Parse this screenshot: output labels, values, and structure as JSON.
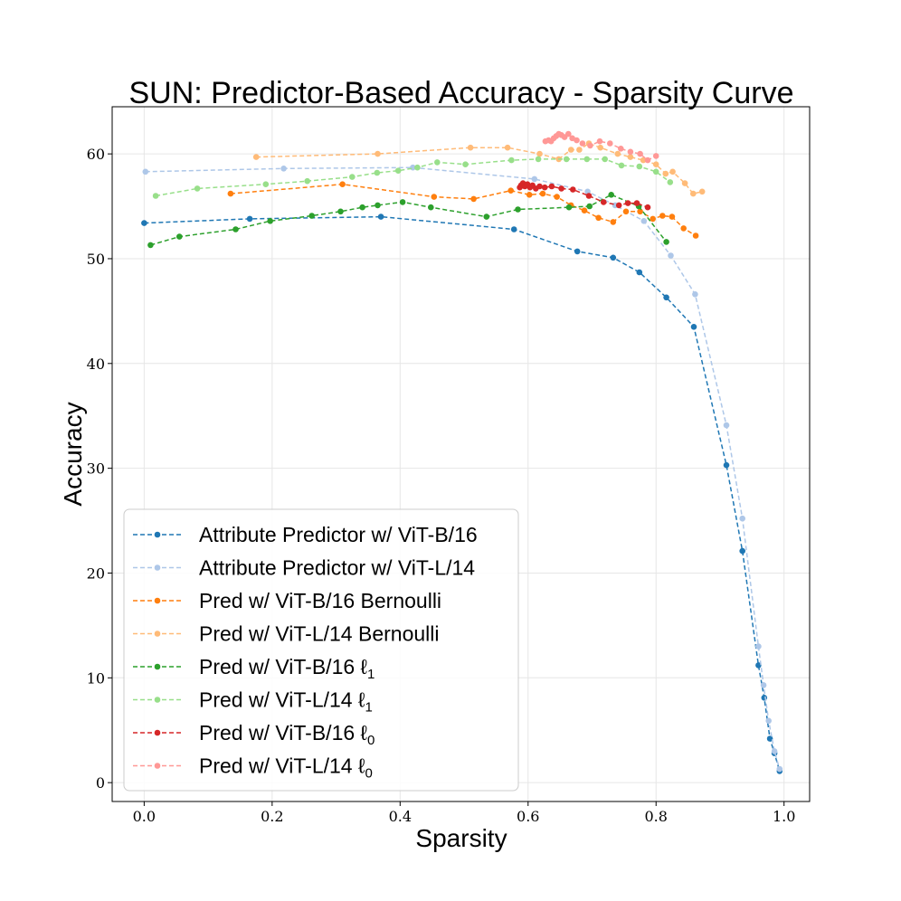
{
  "chart_data": {
    "type": "line",
    "title": "SUN: Predictor-Based Accuracy - Sparsity Curve",
    "xlabel": "Sparsity",
    "ylabel": "Accuracy",
    "xlim": [
      -0.05,
      1.04
    ],
    "ylim": [
      -1.8,
      64.5
    ],
    "grid": true,
    "legend_position": "lower-left",
    "x_ticks": [
      0.0,
      0.2,
      0.4,
      0.6,
      0.8,
      1.0
    ],
    "x_tick_labels": [
      "0.0",
      "0.2",
      "0.4",
      "0.6",
      "0.8",
      "1.0"
    ],
    "y_ticks": [
      0,
      10,
      20,
      30,
      40,
      50,
      60
    ],
    "y_tick_labels": [
      "0",
      "10",
      "20",
      "30",
      "40",
      "50",
      "60"
    ],
    "series": [
      {
        "name": "Attribute Predictor w/ ViT-B/16",
        "color": "#1f77b4",
        "x": [
          0.0,
          0.165,
          0.37,
          0.578,
          0.677,
          0.733,
          0.774,
          0.816,
          0.859,
          0.91,
          0.935,
          0.96,
          0.969,
          0.978,
          0.985,
          0.993
        ],
        "y": [
          53.4,
          53.8,
          54.0,
          52.8,
          50.7,
          50.1,
          48.7,
          46.3,
          43.5,
          30.3,
          22.1,
          11.2,
          8.1,
          4.2,
          2.8,
          1.1
        ]
      },
      {
        "name": "Attribute Predictor w/ ViT-L/14",
        "color": "#aec7e8",
        "x": [
          0.002,
          0.218,
          0.42,
          0.61,
          0.693,
          0.736,
          0.781,
          0.823,
          0.861,
          0.91,
          0.935,
          0.96,
          0.968,
          0.976,
          0.985,
          0.993
        ],
        "y": [
          58.3,
          58.6,
          58.7,
          57.6,
          56.4,
          55.1,
          53.6,
          50.3,
          46.6,
          34.1,
          25.2,
          13.0,
          9.3,
          5.9,
          3.0,
          1.3
        ]
      },
      {
        "name": "Pred w/ ViT-B/16 Bernoulli",
        "color": "#ff7f0e",
        "x": [
          0.135,
          0.31,
          0.453,
          0.515,
          0.573,
          0.602,
          0.623,
          0.645,
          0.667,
          0.688,
          0.71,
          0.733,
          0.753,
          0.775,
          0.795,
          0.81,
          0.825,
          0.843,
          0.862
        ],
        "y": [
          56.2,
          57.1,
          55.9,
          55.7,
          56.5,
          56.1,
          56.2,
          55.9,
          55.1,
          54.6,
          53.9,
          53.5,
          54.5,
          54.5,
          53.8,
          54.1,
          54.0,
          52.9,
          52.2
        ]
      },
      {
        "name": "Pred w/ ViT-L/14 Bernoulli",
        "color": "#ffbb78",
        "x": [
          0.175,
          0.365,
          0.51,
          0.568,
          0.618,
          0.648,
          0.667,
          0.68,
          0.695,
          0.713,
          0.74,
          0.76,
          0.78,
          0.8,
          0.815,
          0.826,
          0.845,
          0.858,
          0.872
        ],
        "y": [
          59.7,
          60.0,
          60.6,
          60.6,
          60.0,
          59.5,
          60.4,
          60.4,
          61.0,
          60.6,
          60.0,
          59.7,
          59.4,
          59.0,
          58.1,
          58.3,
          57.2,
          56.2,
          56.4
        ]
      },
      {
        "name": "Pred w/ ViT-B/16 ℓ1",
        "color": "#2ca02c",
        "x": [
          0.01,
          0.055,
          0.143,
          0.197,
          0.262,
          0.307,
          0.341,
          0.365,
          0.404,
          0.448,
          0.535,
          0.584,
          0.664,
          0.696,
          0.73,
          0.773,
          0.816
        ],
        "y": [
          51.3,
          52.1,
          52.8,
          53.6,
          54.1,
          54.5,
          54.9,
          55.1,
          55.4,
          54.9,
          54.0,
          54.7,
          54.9,
          55.0,
          56.1,
          55.0,
          51.6
        ]
      },
      {
        "name": "Pred w/ ViT-L/14 ℓ1",
        "color": "#98df8a",
        "x": [
          0.018,
          0.083,
          0.19,
          0.255,
          0.325,
          0.364,
          0.397,
          0.427,
          0.458,
          0.502,
          0.574,
          0.616,
          0.66,
          0.692,
          0.72,
          0.746,
          0.774,
          0.8,
          0.822
        ],
        "y": [
          56.0,
          56.7,
          57.1,
          57.4,
          57.8,
          58.2,
          58.4,
          58.7,
          59.2,
          59.0,
          59.4,
          59.5,
          59.5,
          59.5,
          59.5,
          58.9,
          58.8,
          58.3,
          57.3
        ]
      },
      {
        "name": "Pred w/ ViT-B/16 ℓ0",
        "color": "#d62728",
        "x": [
          0.587,
          0.589,
          0.592,
          0.595,
          0.599,
          0.603,
          0.607,
          0.612,
          0.618,
          0.626,
          0.637,
          0.652,
          0.67,
          0.695,
          0.718,
          0.742,
          0.756,
          0.77,
          0.787
        ],
        "y": [
          56.8,
          57.0,
          57.2,
          56.9,
          57.1,
          56.8,
          57.0,
          56.7,
          56.9,
          56.8,
          56.9,
          56.7,
          56.6,
          56.0,
          55.4,
          55.1,
          55.3,
          55.3,
          54.9
        ]
      },
      {
        "name": "Pred w/ ViT-L/14 ℓ0",
        "color": "#ff9896",
        "x": [
          0.627,
          0.632,
          0.636,
          0.64,
          0.644,
          0.648,
          0.652,
          0.657,
          0.663,
          0.669,
          0.676,
          0.685,
          0.697,
          0.712,
          0.728,
          0.745,
          0.76,
          0.775,
          0.787,
          0.8
        ],
        "y": [
          61.2,
          61.3,
          61.2,
          61.5,
          61.7,
          61.9,
          61.8,
          61.6,
          61.9,
          61.5,
          61.3,
          61.0,
          60.8,
          61.2,
          61.0,
          60.5,
          60.2,
          60.0,
          59.4,
          59.8
        ]
      }
    ],
    "legend_labels": [
      {
        "main": "Attribute Predictor w/ ViT-B/16",
        "sub": ""
      },
      {
        "main": "Attribute Predictor w/ ViT-L/14",
        "sub": ""
      },
      {
        "main": "Pred w/ ViT-B/16 Bernoulli",
        "sub": ""
      },
      {
        "main": "Pred w/ ViT-L/14 Bernoulli",
        "sub": ""
      },
      {
        "main": "Pred w/ ViT-B/16 ℓ",
        "sub": "1"
      },
      {
        "main": "Pred w/ ViT-L/14 ℓ",
        "sub": "1"
      },
      {
        "main": "Pred w/ ViT-B/16 ℓ",
        "sub": "0"
      },
      {
        "main": "Pred w/ ViT-L/14 ℓ",
        "sub": "0"
      }
    ]
  }
}
